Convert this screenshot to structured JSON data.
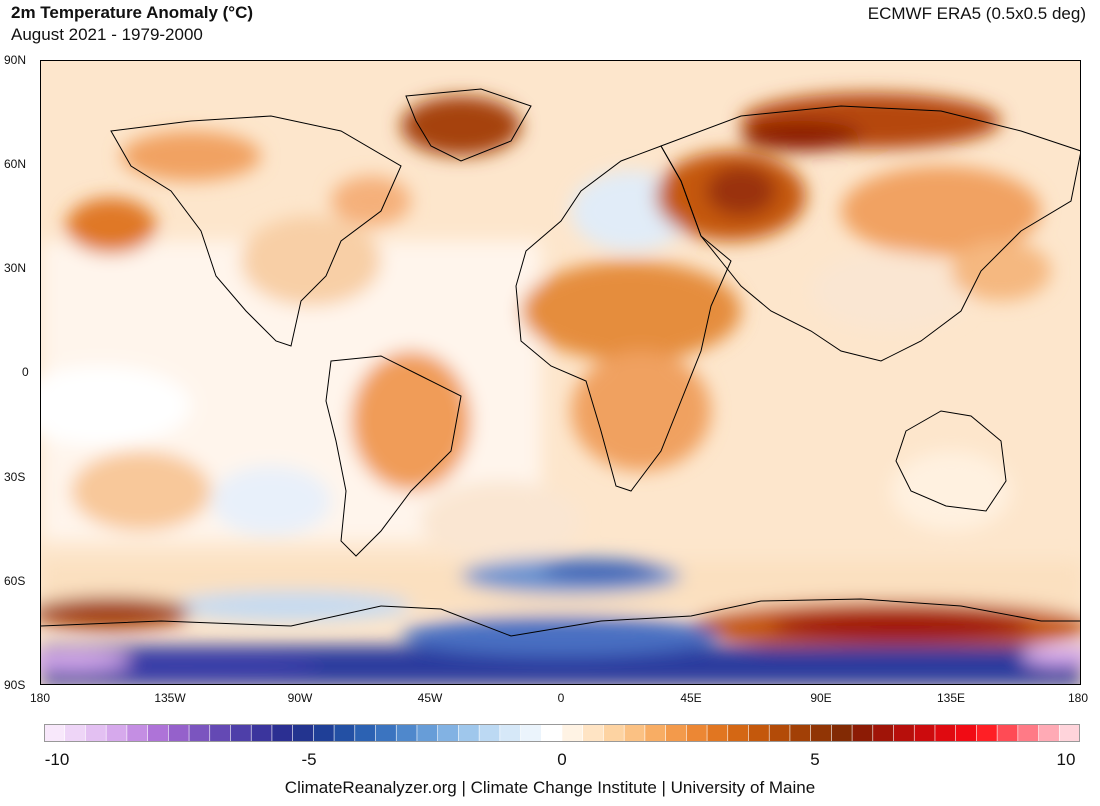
{
  "header": {
    "title": "2m Temperature Anomaly (°C)",
    "subtitle": "August 2021 - 1979-2000",
    "source": "ECMWF ERA5 (0.5x0.5 deg)"
  },
  "map": {
    "lat_labels": [
      "90N",
      "60N",
      "30N",
      "0",
      "30S",
      "60S",
      "90S"
    ],
    "lon_labels": [
      "180",
      "135W",
      "90W",
      "45W",
      "0",
      "45E",
      "90E",
      "135E",
      "180"
    ]
  },
  "colorbar": {
    "min": -10,
    "max": 10,
    "labels": [
      "-10",
      "-5",
      "0",
      "5",
      "10"
    ],
    "colors": [
      "#f8e8fb",
      "#eed5f7",
      "#e3c0f2",
      "#d6a9ec",
      "#c48ee3",
      "#ae73d8",
      "#9561cb",
      "#7b55bf",
      "#6449b4",
      "#4e3fa9",
      "#3b359d",
      "#2b2f92",
      "#23348f",
      "#1f3f97",
      "#2350a4",
      "#2c62b3",
      "#3b74c0",
      "#4f88cc",
      "#679dd8",
      "#82b2e3",
      "#9fc7ec",
      "#bcd9f3",
      "#d6e8f8",
      "#ebf4fc",
      "#ffffff",
      "#fff3e4",
      "#ffe4c4",
      "#fdd3a2",
      "#fbc183",
      "#f8ad64",
      "#f39a4b",
      "#ec8734",
      "#e17621",
      "#d46714",
      "#c4580c",
      "#b34b08",
      "#a24006",
      "#913505",
      "#822a04",
      "#8c1b05",
      "#a01408",
      "#b70f0b",
      "#cc0b0d",
      "#e00a10",
      "#f10b14",
      "#ff1f25",
      "#ff4b55",
      "#ff7a86",
      "#ffaab5",
      "#ffd4db"
    ]
  },
  "footer": {
    "credit": "ClimateReanalyzer.org | Climate Change Institute | University of Maine"
  }
}
